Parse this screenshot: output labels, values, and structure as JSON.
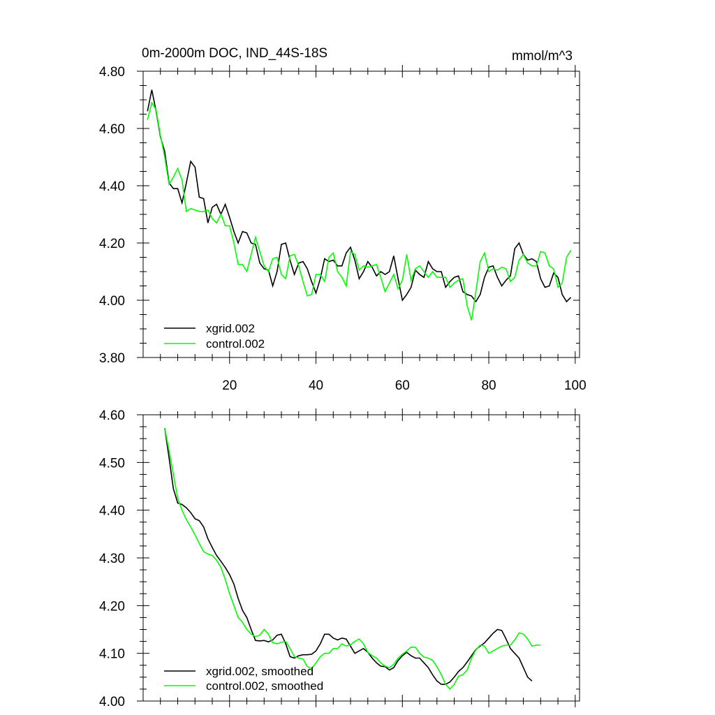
{
  "chart_data": [
    {
      "type": "line",
      "title": "0m-2000m DOC, IND_44S-18S",
      "units": "mmol/m^3",
      "xlim": [
        0,
        101
      ],
      "ylim": [
        3.8,
        4.8
      ],
      "xticks": [
        20,
        40,
        60,
        80,
        100
      ],
      "xtick_labels": [
        "20",
        "40",
        "60",
        "80",
        "100"
      ],
      "yticks": [
        3.8,
        4.0,
        4.2,
        4.4,
        4.6,
        4.8
      ],
      "ytick_labels": [
        "3.80",
        "4.00",
        "4.20",
        "4.40",
        "4.60",
        "4.80"
      ],
      "grid": false,
      "legend_position": "bottom-left",
      "x_start": 1,
      "series": [
        {
          "name": "xgrid.002",
          "color": "#000000",
          "values": [
            4.66,
            4.735,
            4.66,
            4.57,
            4.52,
            4.41,
            4.39,
            4.39,
            4.34,
            4.41,
            4.485,
            4.465,
            4.36,
            4.355,
            4.27,
            4.325,
            4.335,
            4.3,
            4.335,
            4.29,
            4.24,
            4.2,
            4.24,
            4.235,
            4.2,
            4.195,
            4.13,
            4.11,
            4.105,
            4.05,
            4.1,
            4.195,
            4.2,
            4.14,
            4.09,
            4.13,
            4.135,
            4.11,
            4.065,
            4.025,
            4.075,
            4.145,
            4.135,
            4.14,
            4.12,
            4.12,
            4.165,
            4.185,
            4.14,
            4.075,
            4.1,
            4.135,
            4.115,
            4.085,
            4.1,
            4.09,
            4.1,
            4.155,
            4.075,
            4.0,
            4.02,
            4.045,
            4.105,
            4.09,
            4.08,
            4.135,
            4.11,
            4.1,
            4.1,
            4.045,
            4.065,
            4.08,
            4.085,
            4.03,
            4.02,
            4.015,
            3.995,
            4.02,
            4.08,
            4.115,
            4.12,
            4.08,
            4.05,
            4.07,
            4.085,
            4.18,
            4.2,
            4.16,
            4.14,
            4.145,
            4.135,
            4.075,
            4.045,
            4.05,
            4.095,
            4.08,
            4.02,
            3.995,
            4.01
          ]
        },
        {
          "name": "control.002",
          "color": "#00ff00",
          "values": [
            4.63,
            4.69,
            4.665,
            4.575,
            4.5,
            4.405,
            4.43,
            4.46,
            4.42,
            4.31,
            4.32,
            4.315,
            4.31,
            4.31,
            4.315,
            4.285,
            4.27,
            4.3,
            4.26,
            4.26,
            4.2,
            4.125,
            4.125,
            4.1,
            4.16,
            4.22,
            4.17,
            4.12,
            4.1,
            4.145,
            4.15,
            4.09,
            4.075,
            4.155,
            4.16,
            4.12,
            4.065,
            4.015,
            4.02,
            4.09,
            4.09,
            4.065,
            4.15,
            4.165,
            4.1,
            4.08,
            4.05,
            4.17,
            4.16,
            4.105,
            4.12,
            4.115,
            4.12,
            4.125,
            4.08,
            4.03,
            4.06,
            4.09,
            4.04,
            4.07,
            4.16,
            4.07,
            4.11,
            4.12,
            4.1,
            4.08,
            4.1,
            4.08,
            4.08,
            4.08,
            4.045,
            4.06,
            4.07,
            4.075,
            3.98,
            3.93,
            4.03,
            4.135,
            4.165,
            4.1,
            4.11,
            4.105,
            4.115,
            4.11,
            4.065,
            4.08,
            4.14,
            4.16,
            4.13,
            4.12,
            4.12,
            4.17,
            4.165,
            4.12,
            4.11,
            4.045,
            4.06,
            4.15,
            4.175
          ]
        }
      ]
    },
    {
      "type": "line",
      "title": "",
      "xlim": [
        0,
        101
      ],
      "ylim": [
        4.0,
        4.6
      ],
      "xticks": [
        20,
        40,
        60,
        80,
        100
      ],
      "xtick_labels": [
        "",
        "",
        "",
        "",
        ""
      ],
      "yticks": [
        4.0,
        4.1,
        4.2,
        4.3,
        4.4,
        4.5,
        4.6
      ],
      "ytick_labels": [
        "4.00",
        "4.10",
        "4.20",
        "4.30",
        "4.40",
        "4.50",
        "4.60"
      ],
      "grid": false,
      "legend_position": "bottom-left",
      "x_start": 5,
      "series": [
        {
          "name": "xgrid.002, smoothed",
          "color": "#000000",
          "values": [
            4.572,
            4.51,
            4.445,
            4.415,
            4.412,
            4.405,
            4.395,
            4.382,
            4.378,
            4.365,
            4.34,
            4.322,
            4.305,
            4.293,
            4.28,
            4.265,
            4.245,
            4.215,
            4.19,
            4.175,
            4.15,
            4.127,
            4.126,
            4.127,
            4.124,
            4.128,
            4.138,
            4.14,
            4.12,
            4.093,
            4.09,
            4.095,
            4.097,
            4.097,
            4.098,
            4.105,
            4.12,
            4.14,
            4.14,
            4.132,
            4.128,
            4.132,
            4.13,
            4.115,
            4.1,
            4.105,
            4.11,
            4.102,
            4.09,
            4.08,
            4.073,
            4.072,
            4.065,
            4.07,
            4.085,
            4.095,
            4.102,
            4.095,
            4.09,
            4.09,
            4.08,
            4.07,
            4.055,
            4.042,
            4.035,
            4.035,
            4.04,
            4.05,
            4.062,
            4.07,
            4.082,
            4.095,
            4.108,
            4.115,
            4.122,
            4.132,
            4.142,
            4.15,
            4.148,
            4.13,
            4.11,
            4.1,
            4.09,
            4.07,
            4.05,
            4.042
          ]
        },
        {
          "name": "control.002, smoothed",
          "color": "#00ff00",
          "values": [
            4.572,
            4.525,
            4.475,
            4.425,
            4.4,
            4.38,
            4.365,
            4.348,
            4.33,
            4.313,
            4.308,
            4.305,
            4.295,
            4.28,
            4.255,
            4.225,
            4.2,
            4.175,
            4.165,
            4.15,
            4.14,
            4.135,
            4.138,
            4.15,
            4.14,
            4.122,
            4.12,
            4.123,
            4.125,
            4.11,
            4.093,
            4.09,
            4.088,
            4.072,
            4.068,
            4.08,
            4.093,
            4.1,
            4.1,
            4.11,
            4.11,
            4.12,
            4.115,
            4.118,
            4.125,
            4.13,
            4.12,
            4.102,
            4.095,
            4.09,
            4.08,
            4.073,
            4.07,
            4.077,
            4.09,
            4.098,
            4.105,
            4.113,
            4.113,
            4.1,
            4.092,
            4.09,
            4.085,
            4.072,
            4.055,
            4.035,
            4.025,
            4.035,
            4.052,
            4.055,
            4.065,
            4.09,
            4.107,
            4.117,
            4.115,
            4.1,
            4.105,
            4.11,
            4.115,
            4.117,
            4.117,
            4.128,
            4.143,
            4.14,
            4.13,
            4.115,
            4.117,
            4.117
          ]
        }
      ]
    }
  ]
}
